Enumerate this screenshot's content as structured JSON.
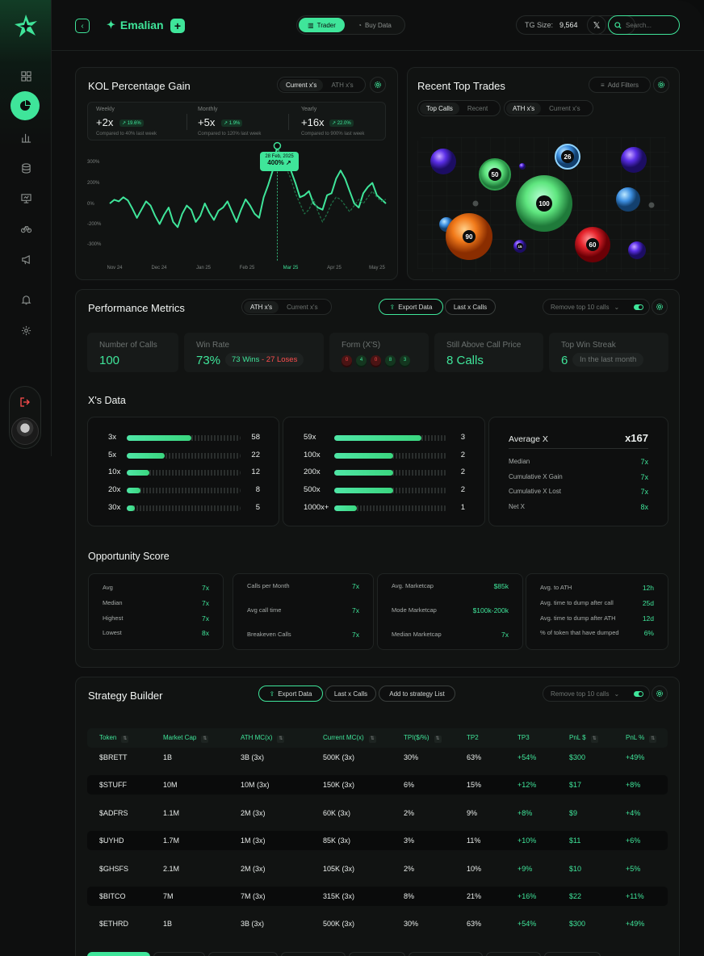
{
  "app": {
    "brand": "Emalian"
  },
  "topbar": {
    "modes": [
      "Trader",
      "Buy Data"
    ],
    "tg_label": "TG Size:",
    "tg_value": "9,564",
    "x_label": "𝕏",
    "search_placeholder": "Search..."
  },
  "kol": {
    "title": "KOL Percentage Gain",
    "tabs": [
      "Current x's",
      "ATH x's"
    ],
    "stats": [
      {
        "label": "Weekly",
        "value": "+2x",
        "change": "↗ 19.6%",
        "compare": "Compared to 40% last week"
      },
      {
        "label": "Monthly",
        "value": "+5x",
        "change": "↗ 1.9%",
        "compare": "Compared to 120% last week"
      },
      {
        "label": "Yearly",
        "value": "+16x",
        "change": "↗ 22.0%",
        "compare": "Compared to 900% last week"
      }
    ],
    "tooltip_date": "28 Feb, 2025",
    "tooltip_value": "400% ↗"
  },
  "chart_data": {
    "type": "line",
    "x_ticks": [
      "Nov 24",
      "Dec 24",
      "Jan 25",
      "Feb 25",
      "Mar 25",
      "Apr 25",
      "May 25"
    ],
    "y_ticks": [
      "300%",
      "200%",
      "0%",
      "-200%",
      "-300%"
    ],
    "highlight_tick": "Mar 25",
    "series": [
      {
        "values": [
          0.0,
          0.18,
          0.1,
          0.3,
          0.15,
          -0.25,
          -0.7,
          -0.3,
          0.1,
          -0.1,
          -0.6,
          -1.0,
          -0.55,
          -0.2,
          -0.9,
          -1.15,
          -0.5,
          -0.1,
          -0.3,
          -0.9,
          -0.6,
          0.0,
          -0.45,
          -0.8,
          -0.35,
          -0.2,
          0.1,
          -0.4,
          -0.9,
          -0.3,
          0.2,
          -0.1,
          -0.5,
          -0.7,
          0.3,
          0.9,
          1.6,
          2.8,
          2.0,
          2.3,
          1.6,
          1.0,
          0.3,
          0.4,
          0.6,
          0.0,
          -0.2,
          -0.3,
          0.4,
          0.5,
          1.2,
          1.6,
          1.2,
          0.6,
          0.0,
          -0.2,
          0.5,
          0.8,
          1.0,
          0.4,
          0.2,
          0.0
        ]
      },
      {
        "values": [
          null,
          null,
          null,
          null,
          null,
          null,
          null,
          null,
          null,
          null,
          null,
          null,
          null,
          null,
          null,
          null,
          null,
          null,
          null,
          null,
          null,
          null,
          null,
          null,
          null,
          null,
          null,
          null,
          null,
          null,
          null,
          null,
          null,
          null,
          null,
          null,
          null,
          2.8,
          2.0,
          1.7,
          1.2,
          0.5,
          0.0,
          -0.5,
          -0.3,
          0.2,
          -0.4,
          -0.9,
          -0.5,
          0.0,
          0.3,
          0.2,
          -0.1,
          -0.4,
          -0.1,
          0.2,
          0.0,
          0.3,
          0.6,
          0.3,
          0.1,
          0.2
        ]
      }
    ]
  },
  "recent": {
    "title": "Recent Top Trades",
    "filter_label": "Add Filters",
    "tabs1": [
      "Top Calls",
      "Recent"
    ],
    "tabs2": [
      "ATH x's",
      "Current x's"
    ],
    "bubbles": [
      "50",
      "26",
      "100",
      "90",
      "60",
      "15"
    ]
  },
  "performance": {
    "title": "Performance Metrics",
    "tabs": [
      "ATH x's",
      "Current x's"
    ],
    "export_label": "Export Data",
    "last_calls_label": "Last x Calls",
    "remove_label": "Remove top 10 calls",
    "metrics": [
      {
        "label": "Number of Calls",
        "value": "100"
      },
      {
        "label": "Win Rate",
        "value": "73%",
        "wins": "73 Wins",
        "sep": " - ",
        "loses": "27 Loses"
      },
      {
        "label": "Form (X'S)",
        "form": [
          "0",
          "4",
          "0",
          "8",
          "3"
        ]
      },
      {
        "label": "Still Above Call Price",
        "value": "8 Calls"
      },
      {
        "label": "Top Win Streak",
        "value": "6",
        "note": "In the last month"
      }
    ],
    "xs_title": "X's Data",
    "xs_left": [
      {
        "label": "3x",
        "count": "58",
        "pct": 0.57
      },
      {
        "label": "5x",
        "count": "22",
        "pct": 0.33
      },
      {
        "label": "10x",
        "count": "12",
        "pct": 0.2
      },
      {
        "label": "20x",
        "count": "8",
        "pct": 0.12
      },
      {
        "label": "30x",
        "count": "5",
        "pct": 0.07
      }
    ],
    "xs_right": [
      {
        "label": "59x",
        "count": "3",
        "pct": 0.77
      },
      {
        "label": "100x",
        "count": "2",
        "pct": 0.52
      },
      {
        "label": "200x",
        "count": "2",
        "pct": 0.52
      },
      {
        "label": "500x",
        "count": "2",
        "pct": 0.52
      },
      {
        "label": "1000x+",
        "count": "1",
        "pct": 0.2
      }
    ],
    "avg": {
      "title": "Average X",
      "value": "x167",
      "rows": [
        {
          "label": "Median",
          "value": "7x"
        },
        {
          "label": "Cumulative X Gain",
          "value": "7x"
        },
        {
          "label": "Cumulative X Lost",
          "value": "7x"
        },
        {
          "label": "Net X",
          "value": "8x"
        }
      ]
    },
    "opp_title": "Opportunity Score",
    "opp": [
      [
        {
          "label": "Avg",
          "value": "7x"
        },
        {
          "label": "Median",
          "value": "7x"
        },
        {
          "label": "Highest",
          "value": "7x"
        },
        {
          "label": "Lowest",
          "value": "8x"
        }
      ],
      [
        {
          "label": "Calls per Month",
          "value": "7x"
        },
        {
          "label": "Avg call time",
          "value": "7x"
        },
        {
          "label": "Breakeven Calls",
          "value": "7x"
        }
      ],
      [
        {
          "label": "Avg. Marketcap",
          "value": "$85k"
        },
        {
          "label": "Mode Marketcap",
          "value": "$100k-200k"
        },
        {
          "label": "Median Marketcap",
          "value": "7x"
        }
      ],
      [
        {
          "label": "Avg. to ATH",
          "value": "12h"
        },
        {
          "label": "Avg. time to dump after call",
          "value": "25d"
        },
        {
          "label": "Avg. time to dump after ATH",
          "value": "12d"
        },
        {
          "label": "% of token that have dumped",
          "value": "6%"
        }
      ]
    ]
  },
  "strategy": {
    "title": "Strategy Builder",
    "export_label": "Export Data",
    "last_calls_label": "Last x Calls",
    "add_label": "Add to strategy List",
    "remove_label": "Remove top 10 calls",
    "columns": [
      "Token",
      "Market Cap",
      "ATH MC(x)",
      "Current MC(x)",
      "TPI($/%)",
      "TP2",
      "TP3",
      "PnL $",
      "PnL %"
    ],
    "rows": [
      [
        "$BRETT",
        "1B",
        "3B (3x)",
        "500K (3x)",
        "30%",
        "63%",
        "+54%",
        "$300",
        "+49%"
      ],
      [
        "$STUFF",
        "10M",
        "10M (3x)",
        "150K (3x)",
        "6%",
        "15%",
        "+12%",
        "$17",
        "+8%"
      ],
      [
        "$ADFRS",
        "1.1M",
        "2M (3x)",
        "60K (3x)",
        "2%",
        "9%",
        "+8%",
        "$9",
        "+4%"
      ],
      [
        "$UYHD",
        "1.7M",
        "1M (3x)",
        "85K (3x)",
        "3%",
        "11%",
        "+10%",
        "$11",
        "+6%"
      ],
      [
        "$GHSFS",
        "2.1M",
        "2M (3x)",
        "105K (3x)",
        "2%",
        "10%",
        "+9%",
        "$10",
        "+5%"
      ],
      [
        "$BITCO",
        "7M",
        "7M (3x)",
        "315K (3x)",
        "8%",
        "21%",
        "+16%",
        "$22",
        "+11%"
      ],
      [
        "$ETHRD",
        "1B",
        "3B (3x)",
        "500K (3x)",
        "30%",
        "63%",
        "+54%",
        "$300",
        "+49%"
      ]
    ]
  },
  "colors": {
    "accent": "#3fe59a",
    "bg": "#0e0f0f",
    "panel": "#111312",
    "loss": "#ff4d4d"
  }
}
